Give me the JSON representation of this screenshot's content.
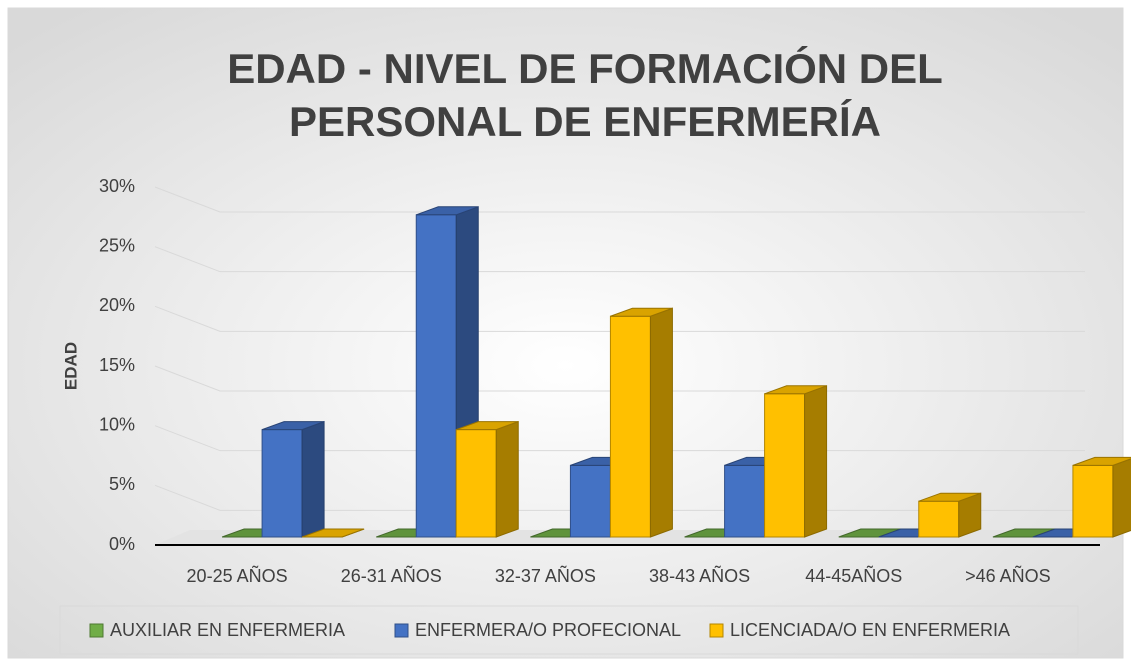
{
  "chart_data": {
    "type": "bar3d",
    "title": [
      "EDAD - NIVEL DE FORMACIÓN DEL",
      "PERSONAL DE ENFERMERÍA"
    ],
    "y_label": "EDAD",
    "categories": [
      "20-25 AÑOS",
      "26-31 AÑOS",
      "32-37 AÑOS",
      "38-43 AÑOS",
      "44-45AÑOS",
      ">46 AÑOS"
    ],
    "series": [
      {
        "name": "AUXILIAR EN ENFERMERIA",
        "color": "#70ad47",
        "values": [
          0,
          0,
          0,
          0,
          0,
          0
        ]
      },
      {
        "name": "ENFERMERA/O PROFECIONAL",
        "color": "#4472c4",
        "values": [
          9,
          27,
          6,
          6,
          0,
          0
        ]
      },
      {
        "name": "LICENCIADA/O EN ENFERMERIA",
        "color": "#ffc000",
        "values": [
          0,
          9,
          18.5,
          12,
          3,
          6
        ]
      }
    ],
    "ylim": [
      0,
      30
    ],
    "yticks": [
      {
        "value": 0,
        "label": "0%"
      },
      {
        "value": 5,
        "label": "5%"
      },
      {
        "value": 10,
        "label": "10%"
      },
      {
        "value": 15,
        "label": "15%"
      },
      {
        "value": 20,
        "label": "20%"
      },
      {
        "value": 25,
        "label": "25%"
      },
      {
        "value": 30,
        "label": "30%"
      }
    ],
    "grid": true,
    "legend": "bottom"
  }
}
